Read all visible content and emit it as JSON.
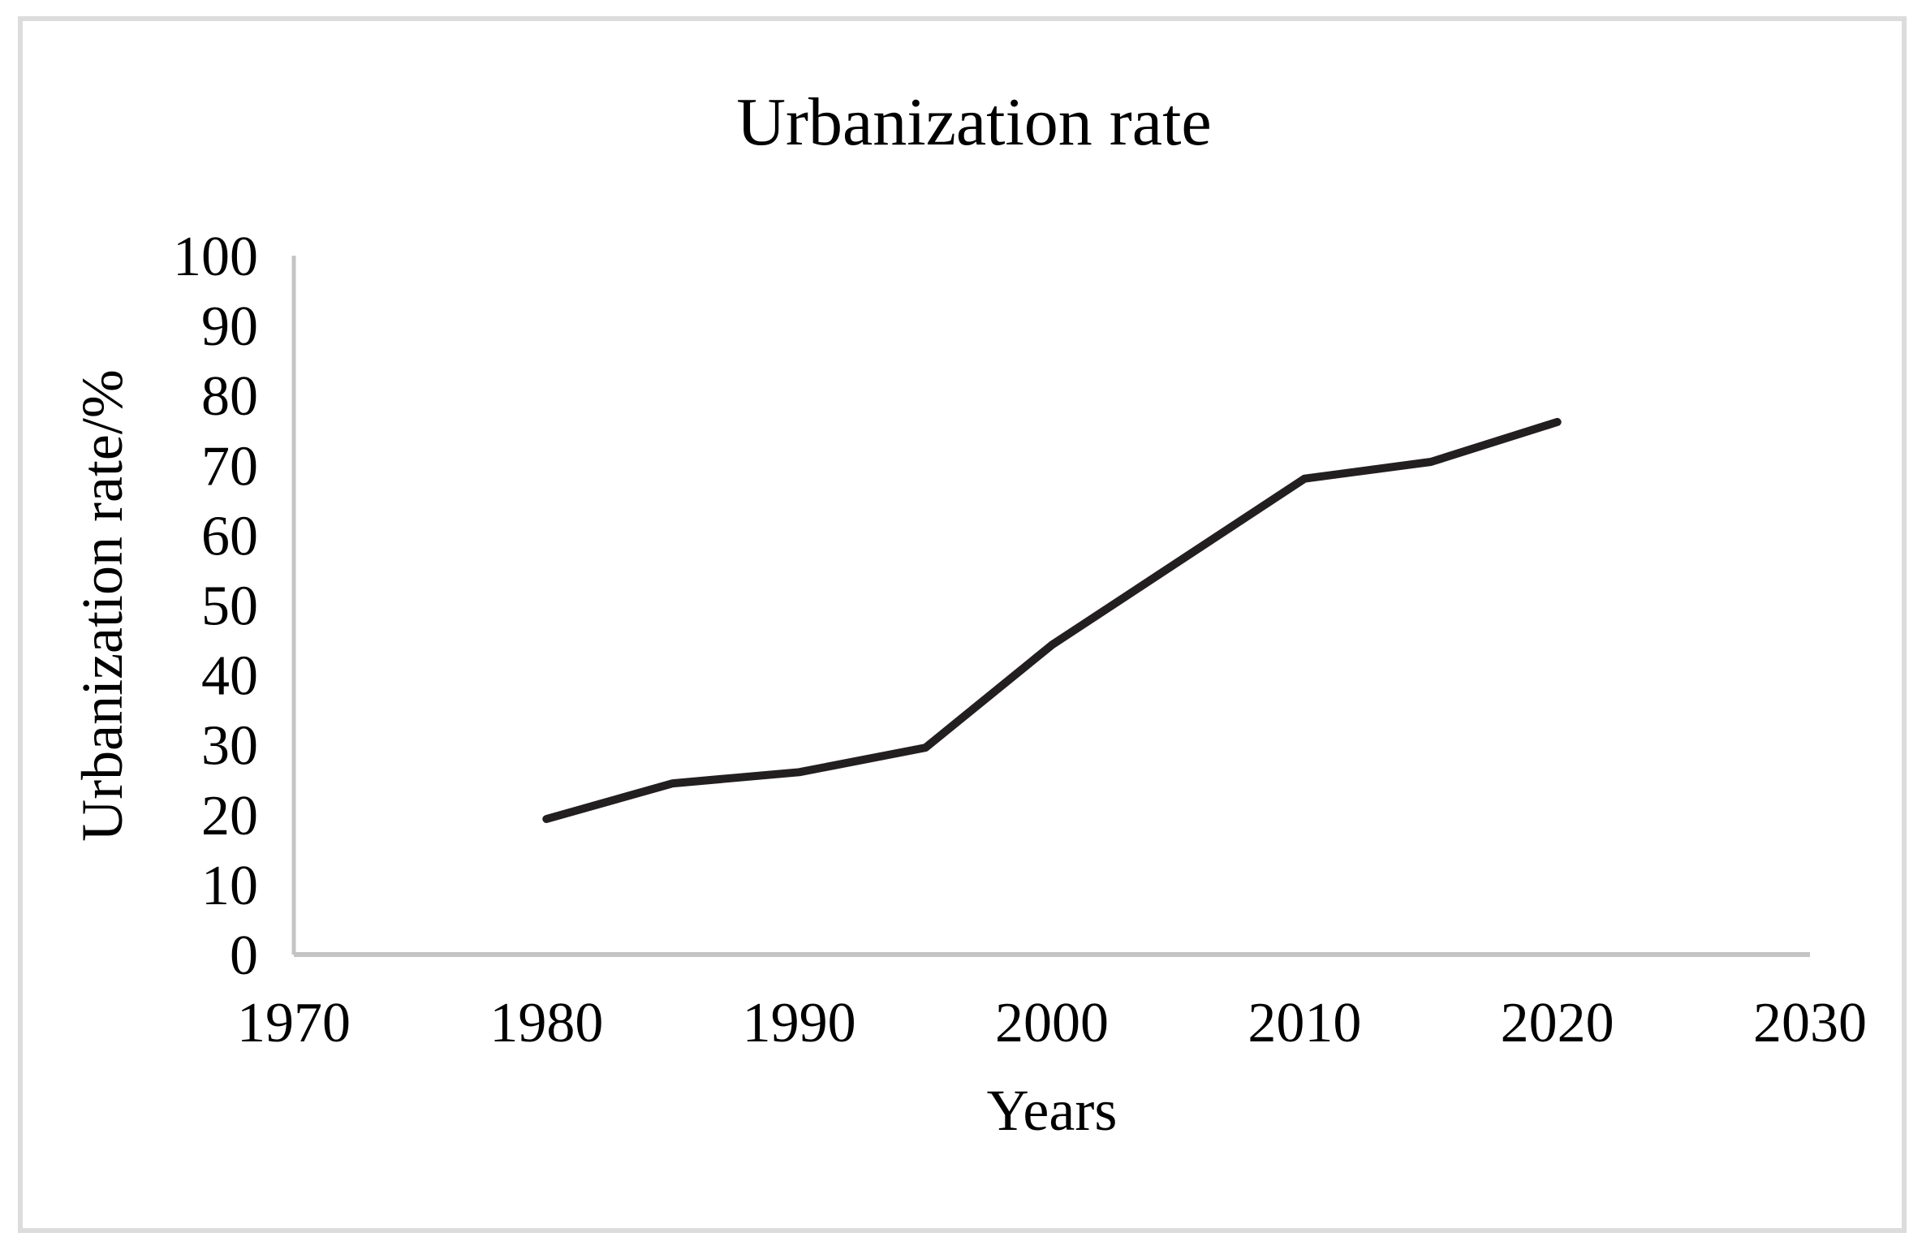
{
  "chart_data": {
    "type": "line",
    "title": "Urbanization rate",
    "xlabel": "Years",
    "ylabel": "Urbanization rate/%",
    "x": [
      1980,
      1985,
      1990,
      1995,
      2000,
      2010,
      2015,
      2020
    ],
    "values": [
      19.4,
      24.5,
      26.1,
      29.6,
      44.3,
      68.1,
      70.5,
      76.2
    ],
    "series_name": "Urbanization rate",
    "xlim": [
      1970,
      2030
    ],
    "ylim": [
      0,
      100
    ],
    "x_ticks": [
      1970,
      1980,
      1990,
      2000,
      2010,
      2020,
      2030
    ],
    "y_ticks": [
      0,
      10,
      20,
      30,
      40,
      50,
      60,
      70,
      80,
      90,
      100
    ],
    "grid": false,
    "legend_position": "none"
  },
  "colors": {
    "background": "#ffffff",
    "frame_border": "#dcdcdc",
    "axis_line": "#c4c4c4",
    "data_line": "#231f20",
    "text": "#000000"
  }
}
